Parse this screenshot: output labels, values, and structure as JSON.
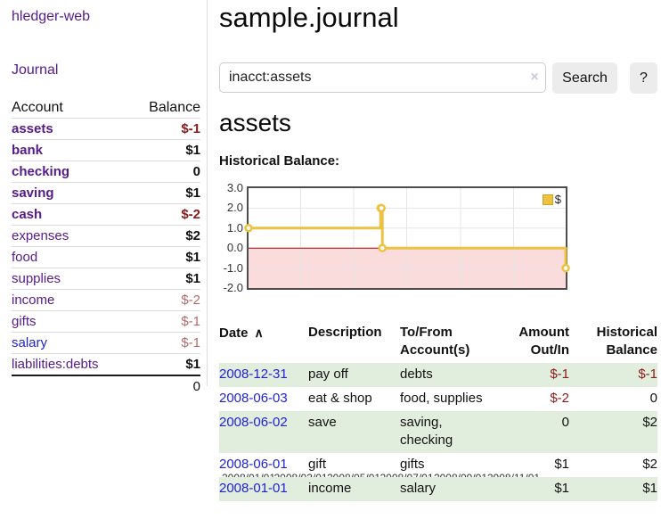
{
  "app": {
    "brand": "hledger-web"
  },
  "sidebar": {
    "nav_journal": "Journal",
    "accounts": {
      "headers": [
        "Account",
        "Balance"
      ],
      "rows": [
        {
          "label": "assets",
          "balance": "$-1",
          "indent": 0,
          "bold": true,
          "balance_style": "neg-strong",
          "link_style": "purple"
        },
        {
          "label": "bank",
          "balance": "$1",
          "indent": 1,
          "bold": true,
          "balance_style": "pos",
          "link_style": "purple"
        },
        {
          "label": "checking",
          "balance": "0",
          "indent": 2,
          "bold": true,
          "balance_style": "pos",
          "link_style": "purple"
        },
        {
          "label": "saving",
          "balance": "$1",
          "indent": 2,
          "bold": true,
          "balance_style": "pos",
          "link_style": "purple"
        },
        {
          "label": "cash",
          "balance": "$-2",
          "indent": 1,
          "bold": true,
          "balance_style": "neg-strong",
          "link_style": "purple"
        },
        {
          "label": "expenses",
          "balance": "$2",
          "indent": 0,
          "bold": false,
          "balance_style": "pos",
          "link_style": "purple"
        },
        {
          "label": "food",
          "balance": "$1",
          "indent": 1,
          "bold": false,
          "balance_style": "pos",
          "link_style": "purple"
        },
        {
          "label": "supplies",
          "balance": "$1",
          "indent": 1,
          "bold": false,
          "balance_style": "pos",
          "link_style": "purple"
        },
        {
          "label": "income",
          "balance": "$-2",
          "indent": 0,
          "bold": false,
          "balance_style": "neg-soft",
          "link_style": "purple"
        },
        {
          "label": "gifts",
          "balance": "$-1",
          "indent": 1,
          "bold": false,
          "balance_style": "neg-soft",
          "link_style": "purple"
        },
        {
          "label": "salary",
          "balance": "$-1",
          "indent": 1,
          "bold": false,
          "balance_style": "neg-soft",
          "link_style": "blue"
        },
        {
          "label": "liabilities:debts",
          "balance": "$1",
          "indent": 0,
          "bold": false,
          "balance_style": "pos",
          "link_style": "purple"
        }
      ],
      "total": "0"
    }
  },
  "main": {
    "title": "sample.journal",
    "search": {
      "value": "inacct:assets",
      "clear_icon": "×",
      "button_label": "Search",
      "help_label": "?"
    },
    "account_heading": "assets",
    "chart_label": "Historical Balance:"
  },
  "chart_data": {
    "type": "line",
    "subtype": "step",
    "title": "Historical Balance:",
    "legend": [
      {
        "name": "$",
        "color": "#edc240"
      }
    ],
    "series": [
      {
        "name": "$",
        "points": [
          [
            "2008-01-01",
            1
          ],
          [
            "2008-06-01",
            2
          ],
          [
            "2008-06-02",
            2
          ],
          [
            "2008-06-03",
            0
          ],
          [
            "2008-12-31",
            -1
          ]
        ]
      }
    ],
    "ylim": [
      -2.0,
      3.0
    ],
    "yticks": [
      3.0,
      2.0,
      1.0,
      0.0,
      -1.0,
      -2.0
    ],
    "xticks": [
      "2008/01/01",
      "2008/03/01",
      "2008/05/01",
      "2008/07/01",
      "2008/09/01",
      "2008/11/01"
    ],
    "x_range": [
      "2008-01-01",
      "2008-12-31"
    ],
    "grid": true,
    "legend_position": "top-right",
    "colors": {
      "line": "#edc240",
      "point_fill": "#ffffff",
      "negative_region": "#fbdcdc",
      "zero_line": "#a40000",
      "gridline": "#e6e6e6",
      "plot_border": "#4d4d4d"
    }
  },
  "register": {
    "headers": [
      "Date",
      "Description",
      "To/From Account(s)",
      "Amount Out/In",
      "Historical Balance"
    ],
    "sort_glyph": "∧",
    "rows": [
      {
        "date": "2008-12-31",
        "description": "pay off",
        "accounts": "debts",
        "amount": "$-1",
        "balance": "$-1",
        "amount_neg": true,
        "balance_neg": true
      },
      {
        "date": "2008-06-03",
        "description": "eat & shop",
        "accounts": "food, supplies",
        "amount": "$-2",
        "balance": "0",
        "amount_neg": true,
        "balance_neg": false
      },
      {
        "date": "2008-06-02",
        "description": "save",
        "accounts": "saving, checking",
        "amount": "0",
        "balance": "$2",
        "amount_neg": false,
        "balance_neg": false
      },
      {
        "date": "2008-06-01",
        "description": "gift",
        "accounts": "gifts",
        "amount": "$1",
        "balance": "$2",
        "amount_neg": false,
        "balance_neg": false
      },
      {
        "date": "2008-01-01",
        "description": "income",
        "accounts": "salary",
        "amount": "$1",
        "balance": "$1",
        "amount_neg": false,
        "balance_neg": false
      }
    ]
  },
  "colors": {
    "link_purple": "#551a8b",
    "link_blue": "#2222d5",
    "negative_strong": "#8b1a1a",
    "negative_soft": "#b36b6b",
    "row_shade_green": "#e1eedd",
    "button_bg": "#ececec"
  }
}
